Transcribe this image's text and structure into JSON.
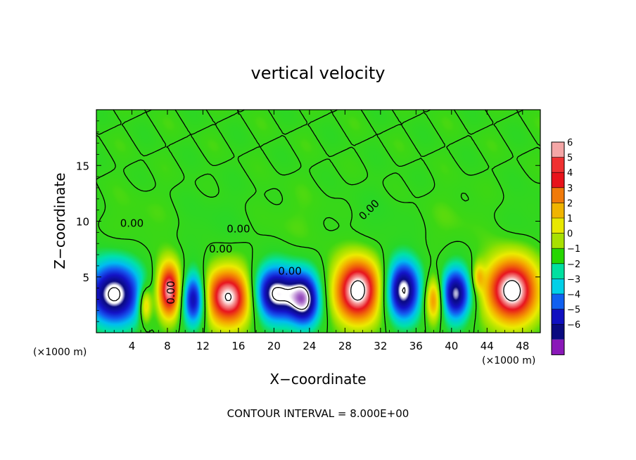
{
  "chart_data": {
    "type": "heatmap",
    "title": "vertical velocity",
    "xlabel": "X−coordinate",
    "ylabel": "Z−coordinate",
    "x_unit_left": "(×1000 m)",
    "x_unit_right": "(×1000 m)",
    "xlim": [
      0,
      50
    ],
    "ylim": [
      0,
      20
    ],
    "x_ticks": [
      4,
      8,
      12,
      16,
      20,
      24,
      28,
      32,
      36,
      40,
      44,
      48
    ],
    "x_tick_labels": [
      "4",
      "8",
      "12",
      "16",
      "20",
      "24",
      "28",
      "32",
      "36",
      "40",
      "44",
      "48"
    ],
    "y_ticks": [
      5,
      10,
      15
    ],
    "y_tick_labels": [
      "5",
      "10",
      "15"
    ],
    "colorbar": {
      "levels": [
        6,
        5,
        4,
        3,
        2,
        1,
        0,
        -1,
        -2,
        -3,
        -4,
        -5,
        -6
      ],
      "labels": [
        "6",
        "5",
        "4",
        "3",
        "2",
        "1",
        "0",
        "−1",
        "−2",
        "−3",
        "−4",
        "−5",
        "−6"
      ],
      "colors": [
        "#f4a6a6",
        "#ef3030",
        "#e8121a",
        "#f07a0a",
        "#f0b400",
        "#e8e800",
        "#a8e000",
        "#26d600",
        "#00e0a0",
        "#00d0e8",
        "#1060f0",
        "#1010c0",
        "#0a0a80",
        "#8a18b8"
      ]
    },
    "cells": [
      {
        "xc": 2.0,
        "zc": 3.5,
        "w": 7.0,
        "h": 7.0,
        "sign": -1,
        "amp": 1.0
      },
      {
        "xc": 5.5,
        "zc": 2.5,
        "w": 1.6,
        "h": 4.0,
        "sign": 1,
        "amp": 0.55
      },
      {
        "xc": 8.2,
        "zc": 3.8,
        "w": 3.0,
        "h": 6.0,
        "sign": 1,
        "amp": 0.95
      },
      {
        "xc": 11.0,
        "zc": 3.0,
        "w": 3.0,
        "h": 6.0,
        "sign": -1,
        "amp": 0.9
      },
      {
        "xc": 15.0,
        "zc": 3.2,
        "w": 6.5,
        "h": 6.4,
        "sign": 1,
        "amp": 1.0
      },
      {
        "xc": 20.0,
        "zc": 3.5,
        "w": 6.0,
        "h": 6.2,
        "sign": -1,
        "amp": 1.0
      },
      {
        "xc": 23.5,
        "zc": 3.0,
        "w": 4.0,
        "h": 6.0,
        "sign": -1,
        "amp": 0.9
      },
      {
        "xc": 29.5,
        "zc": 3.8,
        "w": 6.0,
        "h": 7.0,
        "sign": 1,
        "amp": 1.05
      },
      {
        "xc": 34.5,
        "zc": 3.8,
        "w": 4.5,
        "h": 6.6,
        "sign": -1,
        "amp": 1.0
      },
      {
        "xc": 38.0,
        "zc": 3.0,
        "w": 2.2,
        "h": 5.0,
        "sign": 1,
        "amp": 0.6
      },
      {
        "xc": 40.5,
        "zc": 3.5,
        "w": 3.8,
        "h": 6.0,
        "sign": -1,
        "amp": 0.9
      },
      {
        "xc": 46.8,
        "zc": 3.8,
        "w": 6.5,
        "h": 7.2,
        "sign": 1,
        "amp": 1.05
      },
      {
        "xc": 43.0,
        "zc": 5.0,
        "w": 1.4,
        "h": 3.0,
        "sign": 1,
        "amp": 0.3
      }
    ],
    "zero_contour_labels": [
      "0.00",
      "0.00",
      "0.00",
      "0.00",
      "0.00",
      "0.00"
    ],
    "footer": "CONTOUR INTERVAL = 8.000E+00"
  }
}
